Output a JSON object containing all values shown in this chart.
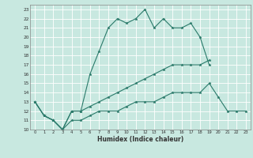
{
  "xlabel": "Humidex (Indice chaleur)",
  "ylabel": "",
  "background_color": "#c8e8e0",
  "grid_color": "#ffffff",
  "line_color": "#2a7a6a",
  "xlim": [
    -0.5,
    23.5
  ],
  "ylim": [
    10,
    23.5
  ],
  "xticks": [
    0,
    1,
    2,
    3,
    4,
    5,
    6,
    7,
    8,
    9,
    10,
    11,
    12,
    13,
    14,
    15,
    16,
    17,
    18,
    19,
    20,
    21,
    22,
    23
  ],
  "yticks": [
    10,
    11,
    12,
    13,
    14,
    15,
    16,
    17,
    18,
    19,
    20,
    21,
    22,
    23
  ],
  "line1_x": [
    0,
    1,
    2,
    3,
    4,
    5,
    6,
    7,
    8,
    9,
    10,
    11,
    12,
    13,
    14,
    15,
    16,
    17,
    18,
    19
  ],
  "line1_y": [
    13,
    11.5,
    11,
    10,
    12,
    12,
    16,
    18.5,
    21,
    22,
    21.5,
    22,
    23,
    21,
    22,
    21,
    21,
    21.5,
    20,
    17
  ],
  "line2_x": [
    0,
    1,
    2,
    3,
    4,
    5,
    6,
    7,
    8,
    9,
    10,
    11,
    12,
    13,
    14,
    15,
    16,
    17,
    18,
    19
  ],
  "line2_y": [
    13,
    11.5,
    11,
    10,
    12,
    12,
    12.5,
    13,
    13.5,
    14,
    14.5,
    15,
    15.5,
    16,
    16.5,
    17,
    17,
    17,
    17,
    17.5
  ],
  "line3_x": [
    0,
    1,
    2,
    3,
    4,
    5,
    6,
    7,
    8,
    9,
    10,
    11,
    12,
    13,
    14,
    15,
    16,
    17,
    18,
    19,
    20,
    21,
    22,
    23
  ],
  "line3_y": [
    13,
    11.5,
    11,
    10,
    11,
    11,
    11.5,
    12,
    12,
    12,
    12.5,
    13,
    13,
    13,
    13.5,
    14,
    14,
    14,
    14,
    15,
    13.5,
    12,
    12,
    12
  ]
}
